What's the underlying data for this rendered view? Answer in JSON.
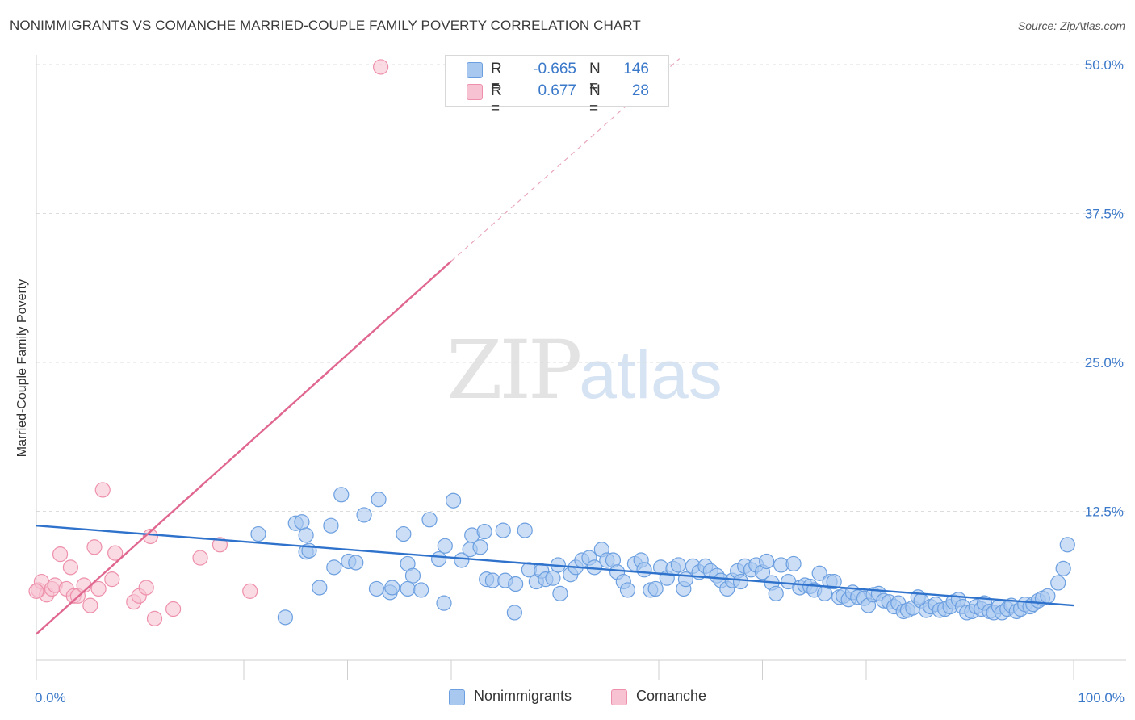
{
  "title": "NONIMMIGRANTS VS COMANCHE MARRIED-COUPLE FAMILY POVERTY CORRELATION CHART",
  "source": "Source: ZipAtlas.com",
  "watermark": {
    "zip": "ZIP",
    "atlas": "atlas"
  },
  "legend": {
    "rows": [
      {
        "r_label": "R =",
        "r_value": "-0.665",
        "n_label": "N =",
        "n_value": "146",
        "color": "#a9c8f0",
        "border": "#6c9fe0"
      },
      {
        "r_label": "R =",
        "r_value": "0.677",
        "n_label": "N =",
        "n_value": "28",
        "color": "#f7c3d2",
        "border": "#ee90ab"
      }
    ]
  },
  "bottom_legend": [
    {
      "label": "Nonimmigrants",
      "color": "#a9c8f0"
    },
    {
      "label": "Comanche",
      "color": "#f7c3d2"
    }
  ],
  "chart_data": {
    "type": "scatter",
    "title": "NONIMMIGRANTS VS COMANCHE MARRIED-COUPLE FAMILY POVERTY CORRELATION CHART",
    "xlabel": "",
    "ylabel": "Married-Couple Family Poverty",
    "xlim": [
      0,
      100
    ],
    "ylim": [
      0,
      50
    ],
    "x_tick_labels": [
      "0.0%",
      "100.0%"
    ],
    "y_ticks": [
      12.5,
      25.0,
      37.5,
      50.0
    ],
    "y_tick_labels": [
      "12.5%",
      "25.0%",
      "37.5%",
      "50.0%"
    ],
    "grid": true,
    "series": [
      {
        "name": "Nonimmigrants",
        "color": "#a9c8f0",
        "stroke": "#6c9fe0",
        "trend": {
          "x0": 0,
          "y0": 11.3,
          "x1": 100,
          "y1": 4.6,
          "color": "#2f72cc"
        },
        "points": [
          [
            25.0,
            11.5
          ],
          [
            21.4,
            10.6
          ],
          [
            25.6,
            11.6
          ],
          [
            28.4,
            11.3
          ],
          [
            26.0,
            10.5
          ],
          [
            29.4,
            13.9
          ],
          [
            31.6,
            12.2
          ],
          [
            33.0,
            13.5
          ],
          [
            35.4,
            10.6
          ],
          [
            37.9,
            11.8
          ],
          [
            40.2,
            13.4
          ],
          [
            42.0,
            10.5
          ],
          [
            43.2,
            10.8
          ],
          [
            45.0,
            10.9
          ],
          [
            47.1,
            10.9
          ],
          [
            26.0,
            9.1
          ],
          [
            26.3,
            9.2
          ],
          [
            28.7,
            7.8
          ],
          [
            30.1,
            8.3
          ],
          [
            30.8,
            8.2
          ],
          [
            35.8,
            8.1
          ],
          [
            36.3,
            7.1
          ],
          [
            38.8,
            8.5
          ],
          [
            39.4,
            9.6
          ],
          [
            41.0,
            8.4
          ],
          [
            41.8,
            9.3
          ],
          [
            42.8,
            9.5
          ],
          [
            32.8,
            6.0
          ],
          [
            34.1,
            5.7
          ],
          [
            34.3,
            6.1
          ],
          [
            35.8,
            6.0
          ],
          [
            37.1,
            5.9
          ],
          [
            27.3,
            6.1
          ],
          [
            24.0,
            3.6
          ],
          [
            39.3,
            4.8
          ],
          [
            46.1,
            4.0
          ],
          [
            43.4,
            6.8
          ],
          [
            44.0,
            6.7
          ],
          [
            45.2,
            6.7
          ],
          [
            46.2,
            6.4
          ],
          [
            47.5,
            7.6
          ],
          [
            48.2,
            6.6
          ],
          [
            48.7,
            7.5
          ],
          [
            49.1,
            6.8
          ],
          [
            49.8,
            6.9
          ],
          [
            50.3,
            8.0
          ],
          [
            50.5,
            5.6
          ],
          [
            51.5,
            7.2
          ],
          [
            52.0,
            7.8
          ],
          [
            52.6,
            8.4
          ],
          [
            53.3,
            8.6
          ],
          [
            53.8,
            7.8
          ],
          [
            54.5,
            9.3
          ],
          [
            55.0,
            8.4
          ],
          [
            55.6,
            8.4
          ],
          [
            56.0,
            7.4
          ],
          [
            56.6,
            6.6
          ],
          [
            57.0,
            5.9
          ],
          [
            57.7,
            8.1
          ],
          [
            58.3,
            8.4
          ],
          [
            58.6,
            7.6
          ],
          [
            59.2,
            5.9
          ],
          [
            59.7,
            6.0
          ],
          [
            60.2,
            7.8
          ],
          [
            60.8,
            6.9
          ],
          [
            61.4,
            7.7
          ],
          [
            61.9,
            8.0
          ],
          [
            62.4,
            6.0
          ],
          [
            62.6,
            6.8
          ],
          [
            63.3,
            7.9
          ],
          [
            63.9,
            7.4
          ],
          [
            64.5,
            7.9
          ],
          [
            65.0,
            7.5
          ],
          [
            65.6,
            7.1
          ],
          [
            66.0,
            6.7
          ],
          [
            66.6,
            6.0
          ],
          [
            67.1,
            6.7
          ],
          [
            67.6,
            7.5
          ],
          [
            67.9,
            6.6
          ],
          [
            68.3,
            7.9
          ],
          [
            68.9,
            7.6
          ],
          [
            69.4,
            8.0
          ],
          [
            70.0,
            7.4
          ],
          [
            70.4,
            8.3
          ],
          [
            70.9,
            6.5
          ],
          [
            71.3,
            5.6
          ],
          [
            71.8,
            8.0
          ],
          [
            72.5,
            6.6
          ],
          [
            73.0,
            8.1
          ],
          [
            73.6,
            6.1
          ],
          [
            74.1,
            6.3
          ],
          [
            74.6,
            6.2
          ],
          [
            75.0,
            5.9
          ],
          [
            75.5,
            7.3
          ],
          [
            76.0,
            5.6
          ],
          [
            76.5,
            6.6
          ],
          [
            76.9,
            6.6
          ],
          [
            77.4,
            5.3
          ],
          [
            77.8,
            5.4
          ],
          [
            78.3,
            5.1
          ],
          [
            78.7,
            5.7
          ],
          [
            79.2,
            5.3
          ],
          [
            79.8,
            5.2
          ],
          [
            80.2,
            4.6
          ],
          [
            80.7,
            5.5
          ],
          [
            81.2,
            5.6
          ],
          [
            81.7,
            5.0
          ],
          [
            82.2,
            4.9
          ],
          [
            82.7,
            4.5
          ],
          [
            83.1,
            4.8
          ],
          [
            83.6,
            4.1
          ],
          [
            84.0,
            4.2
          ],
          [
            84.5,
            4.4
          ],
          [
            85.0,
            5.3
          ],
          [
            85.3,
            5.0
          ],
          [
            85.8,
            4.2
          ],
          [
            86.2,
            4.5
          ],
          [
            86.7,
            4.7
          ],
          [
            87.1,
            4.2
          ],
          [
            87.6,
            4.3
          ],
          [
            88.1,
            4.5
          ],
          [
            88.4,
            4.9
          ],
          [
            88.9,
            5.1
          ],
          [
            89.3,
            4.5
          ],
          [
            89.7,
            4.0
          ],
          [
            90.2,
            4.1
          ],
          [
            90.6,
            4.5
          ],
          [
            91.1,
            4.3
          ],
          [
            91.4,
            4.8
          ],
          [
            91.9,
            4.1
          ],
          [
            92.3,
            4.0
          ],
          [
            92.8,
            4.5
          ],
          [
            93.1,
            4.0
          ],
          [
            93.6,
            4.3
          ],
          [
            94.0,
            4.6
          ],
          [
            94.5,
            4.1
          ],
          [
            94.9,
            4.3
          ],
          [
            95.3,
            4.7
          ],
          [
            95.8,
            4.5
          ],
          [
            96.1,
            4.7
          ],
          [
            96.6,
            5.0
          ],
          [
            97.0,
            5.2
          ],
          [
            97.5,
            5.4
          ],
          [
            98.5,
            6.5
          ],
          [
            99.0,
            7.7
          ],
          [
            99.4,
            9.7
          ]
        ]
      },
      {
        "name": "Comanche",
        "color": "#f7c3d2",
        "stroke": "#ee90ab",
        "trend": {
          "x0": 0,
          "y0": 2.2,
          "x1": 40,
          "y1": 33.5,
          "dash_to_x": 62,
          "dash_to_y": 50.5,
          "color": "#e0678f"
        },
        "points": [
          [
            0.2,
            5.9
          ],
          [
            0.5,
            6.6
          ],
          [
            1.0,
            5.5
          ],
          [
            1.5,
            6.0
          ],
          [
            1.8,
            6.3
          ],
          [
            2.3,
            8.9
          ],
          [
            2.9,
            6.0
          ],
          [
            3.3,
            7.8
          ],
          [
            3.6,
            5.4
          ],
          [
            4.0,
            5.4
          ],
          [
            4.6,
            6.3
          ],
          [
            5.2,
            4.6
          ],
          [
            5.6,
            9.5
          ],
          [
            6.0,
            6.0
          ],
          [
            6.4,
            14.3
          ],
          [
            7.3,
            6.8
          ],
          [
            7.6,
            9.0
          ],
          [
            9.4,
            4.9
          ],
          [
            9.9,
            5.4
          ],
          [
            10.6,
            6.1
          ],
          [
            11.0,
            10.4
          ],
          [
            11.4,
            3.5
          ],
          [
            13.2,
            4.3
          ],
          [
            15.8,
            8.6
          ],
          [
            17.7,
            9.7
          ],
          [
            20.6,
            5.8
          ],
          [
            33.2,
            49.8
          ],
          [
            0.0,
            5.8
          ]
        ]
      }
    ]
  }
}
